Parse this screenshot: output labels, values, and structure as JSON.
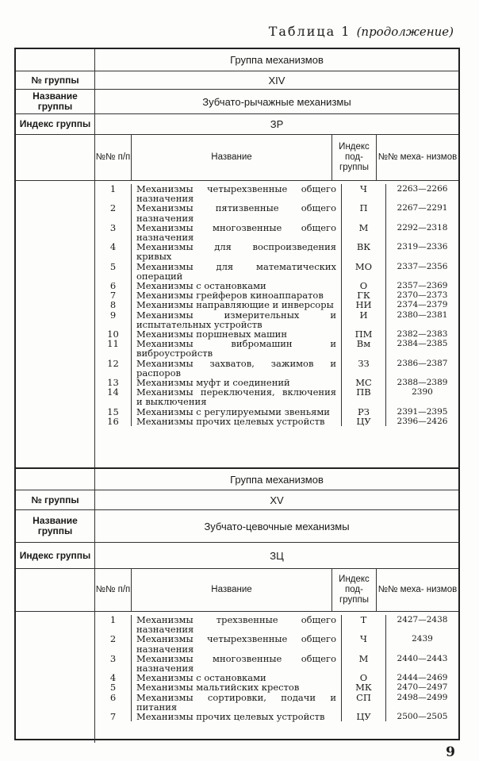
{
  "caption": {
    "text": "Таблица 1",
    "note": "(продолжение)"
  },
  "page_number": "9",
  "column_headers": {
    "num": "№№ п/п",
    "name": "Название",
    "index": "Индекс под- группы",
    "mech": "№№ меха- низмов"
  },
  "labels": {
    "group_header": "Группа механизмов",
    "group_no": "№ группы",
    "group_name": "Название группы",
    "group_index": "Индекс группы"
  },
  "groups": [
    {
      "number": "XIV",
      "name": "Зубчато-рычажные механизмы",
      "index": "ЗР",
      "rows": [
        [
          "1",
          "Механизмы четырехзвенные общего назначения",
          "Ч",
          "2263—2266"
        ],
        [
          "2",
          "Механизмы пятизвенные общего назначения",
          "П",
          "2267—2291"
        ],
        [
          "3",
          "Механизмы многозвенные общего назначения",
          "М",
          "2292—2318"
        ],
        [
          "4",
          "Механизмы для воспроизведения кривых",
          "ВК",
          "2319—2336"
        ],
        [
          "5",
          "Механизмы для математических операций",
          "МО",
          "2337—2356"
        ],
        [
          "6",
          "Механизмы с остановками",
          "О",
          "2357—2369"
        ],
        [
          "7",
          "Механизмы грейферов киноаппаратов",
          "ГК",
          "2370—2373"
        ],
        [
          "8",
          "Механизмы направляющие и инверсоры",
          "НИ",
          "2374—2379"
        ],
        [
          "9",
          "Механизмы измерительных и испытательных устройств",
          "И",
          "2380—2381"
        ],
        [
          "10",
          "Механизмы поршневых машин",
          "ПМ",
          "2382—2383"
        ],
        [
          "11",
          "Механизмы вибромашин и виброустройств",
          "Вм",
          "2384—2385"
        ],
        [
          "12",
          "Механизмы захватов, зажимов и распоров",
          "ЗЗ",
          "2386—2387"
        ],
        [
          "13",
          "Механизмы муфт и соединений",
          "МС",
          "2388—2389"
        ],
        [
          "14",
          "Механизмы переключения, включения и выключения",
          "ПВ",
          "2390"
        ],
        [
          "15",
          "Механизмы с регулируемыми звеньями",
          "РЗ",
          "2391—2395"
        ],
        [
          "16",
          "Механизмы прочих целевых устройств",
          "ЦУ",
          "2396—2426"
        ]
      ]
    },
    {
      "number": "XV",
      "name": "Зубчато-цевочные механизмы",
      "index": "ЗЦ",
      "rows": [
        [
          "1",
          "Механизмы трехзвенные общего назначения",
          "Т",
          "2427—2438"
        ],
        [
          "2",
          "Механизмы четырехзвенные общего назначения",
          "Ч",
          "2439"
        ],
        [
          "3",
          "Механизмы многозвенные общего назначения",
          "М",
          "2440—2443"
        ],
        [
          "4",
          "Механизмы с остановками",
          "О",
          "2444—2469"
        ],
        [
          "5",
          "Механизмы мальтийских крестов",
          "МК",
          "2470—2497"
        ],
        [
          "6",
          "Механизмы сортировки, подачи и питания",
          "СП",
          "2498—2499"
        ],
        [
          "7",
          "Механизмы прочих целевых устройств",
          "ЦУ",
          "2500—2505"
        ]
      ]
    }
  ]
}
